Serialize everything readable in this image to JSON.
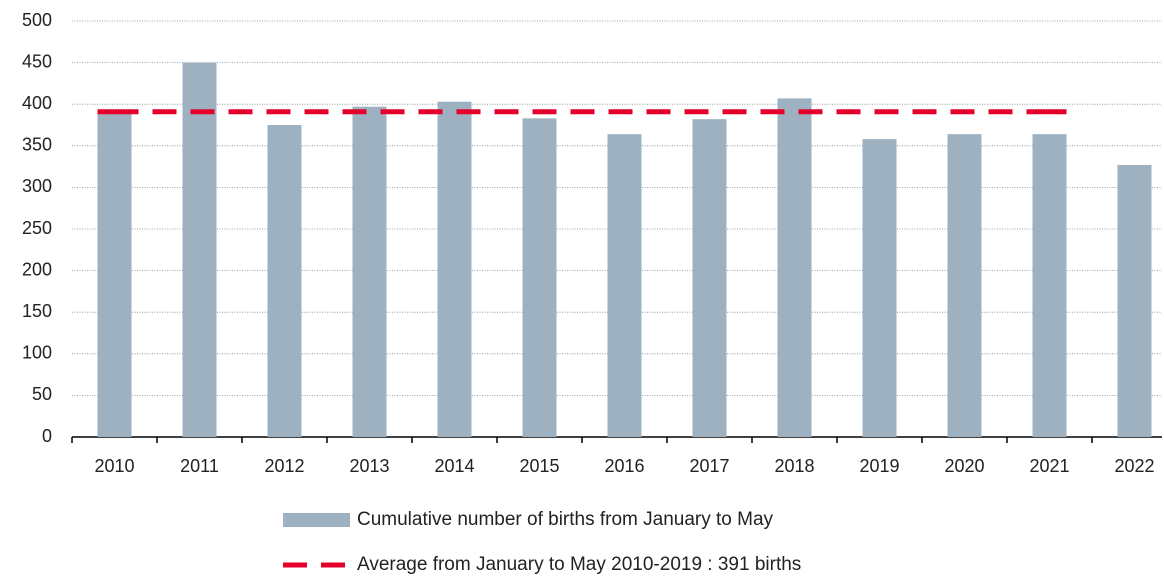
{
  "chart_data": {
    "type": "bar",
    "categories": [
      "2010",
      "2011",
      "2012",
      "2013",
      "2014",
      "2015",
      "2016",
      "2017",
      "2018",
      "2019",
      "2020",
      "2021",
      "2022"
    ],
    "series": [
      {
        "name": "Cumulative number of births from January to May",
        "type": "bar",
        "color": "#9eb1c1",
        "values": [
          389,
          450,
          375,
          397,
          403,
          383,
          364,
          382,
          407,
          358,
          364,
          364,
          327
        ]
      },
      {
        "name": "Average from January to May 2010-2019 : 391 births",
        "type": "line",
        "color": "#e4002b",
        "dashed": true,
        "values": [
          391,
          391,
          391,
          391,
          391,
          391,
          391,
          391,
          391,
          391,
          391,
          391,
          null
        ]
      }
    ],
    "ylim": [
      0,
      500
    ],
    "yticks": [
      0,
      50,
      100,
      150,
      200,
      250,
      300,
      350,
      400,
      450,
      500
    ],
    "grid": true
  }
}
